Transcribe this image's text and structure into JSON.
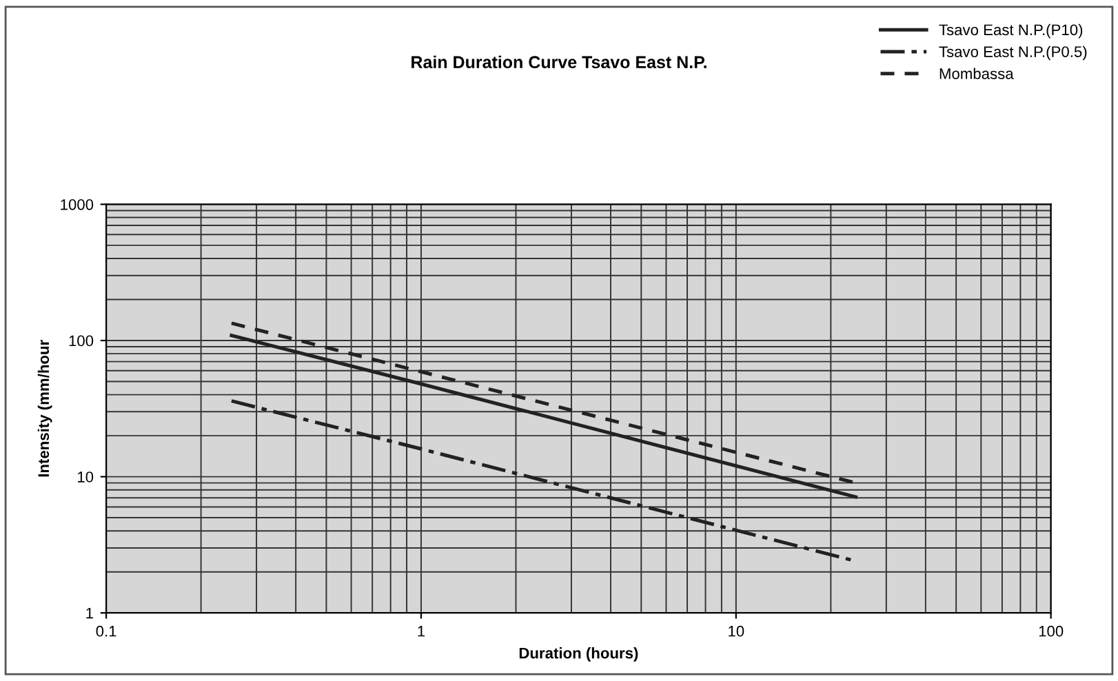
{
  "chart_data": {
    "type": "line",
    "title": "Rain Duration Curve Tsavo East N.P.",
    "xlabel": "Duration (hours)",
    "ylabel": "Intensity (mm/hour",
    "log": "xy",
    "xlim": [
      0.1,
      100
    ],
    "ylim": [
      1,
      1000
    ],
    "xticks": [
      {
        "value": 0.1,
        "label": "0.1"
      },
      1,
      10,
      100
    ],
    "yticks": [
      1,
      10,
      100,
      1000
    ],
    "grid": true,
    "legend": "top right",
    "marker": "none",
    "series": [
      {
        "name": "Tsavo East N.P.(P10)",
        "color": "#222222",
        "line_style": "solid",
        "x": [
          0.25,
          1,
          24
        ],
        "values": [
          109,
          48,
          7.1
        ]
      },
      {
        "name": "Tsavo East N.P.(P0.5)",
        "color": "#222222",
        "line_style": "dashdot",
        "x": [
          0.25,
          1,
          24
        ],
        "values": [
          36,
          16,
          2.4
        ]
      },
      {
        "name": "Mombassa",
        "color": "#222222",
        "line_style": "dashed",
        "x": [
          0.25,
          1,
          24
        ],
        "values": [
          134,
          59,
          9
        ]
      }
    ]
  }
}
